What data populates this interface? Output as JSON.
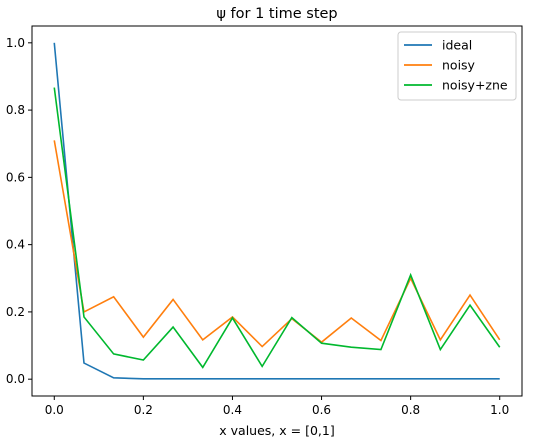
{
  "chart_data": {
    "type": "line",
    "title": "ψ for 1 time step",
    "xlabel": "x values, x = [0,1]",
    "ylabel": "",
    "xlim": [
      -0.05,
      1.05
    ],
    "ylim": [
      -0.05,
      1.05
    ],
    "xticks": [
      0.0,
      0.2,
      0.4,
      0.6,
      0.8,
      1.0
    ],
    "xtick_labels": [
      "0.0",
      "0.2",
      "0.4",
      "0.6",
      "0.8",
      "1.0"
    ],
    "yticks": [
      0.0,
      0.2,
      0.4,
      0.6,
      0.8,
      1.0
    ],
    "ytick_labels": [
      "0.0",
      "0.2",
      "0.4",
      "0.6",
      "0.8",
      "1.0"
    ],
    "grid": false,
    "legend_position": "top-right",
    "x": [
      0.0,
      0.0667,
      0.1333,
      0.2,
      0.2667,
      0.3333,
      0.4,
      0.4667,
      0.5333,
      0.6,
      0.6667,
      0.7333,
      0.8,
      0.8667,
      0.9333,
      1.0
    ],
    "series": [
      {
        "name": "ideal",
        "color": "#1f77b4",
        "values": [
          1.0,
          0.048,
          0.004,
          0.001,
          0.001,
          0.001,
          0.001,
          0.001,
          0.001,
          0.001,
          0.001,
          0.001,
          0.001,
          0.001,
          0.001,
          0.001
        ]
      },
      {
        "name": "noisy",
        "color": "#ff7f0e",
        "values": [
          0.71,
          0.2,
          0.245,
          0.125,
          0.237,
          0.117,
          0.185,
          0.097,
          0.18,
          0.11,
          0.182,
          0.115,
          0.3,
          0.117,
          0.25,
          0.117
        ]
      },
      {
        "name": "noisy+zne",
        "color": "#00b82e",
        "values": [
          0.867,
          0.185,
          0.075,
          0.057,
          0.155,
          0.035,
          0.182,
          0.038,
          0.183,
          0.107,
          0.095,
          0.088,
          0.31,
          0.088,
          0.22,
          0.095
        ]
      }
    ]
  }
}
